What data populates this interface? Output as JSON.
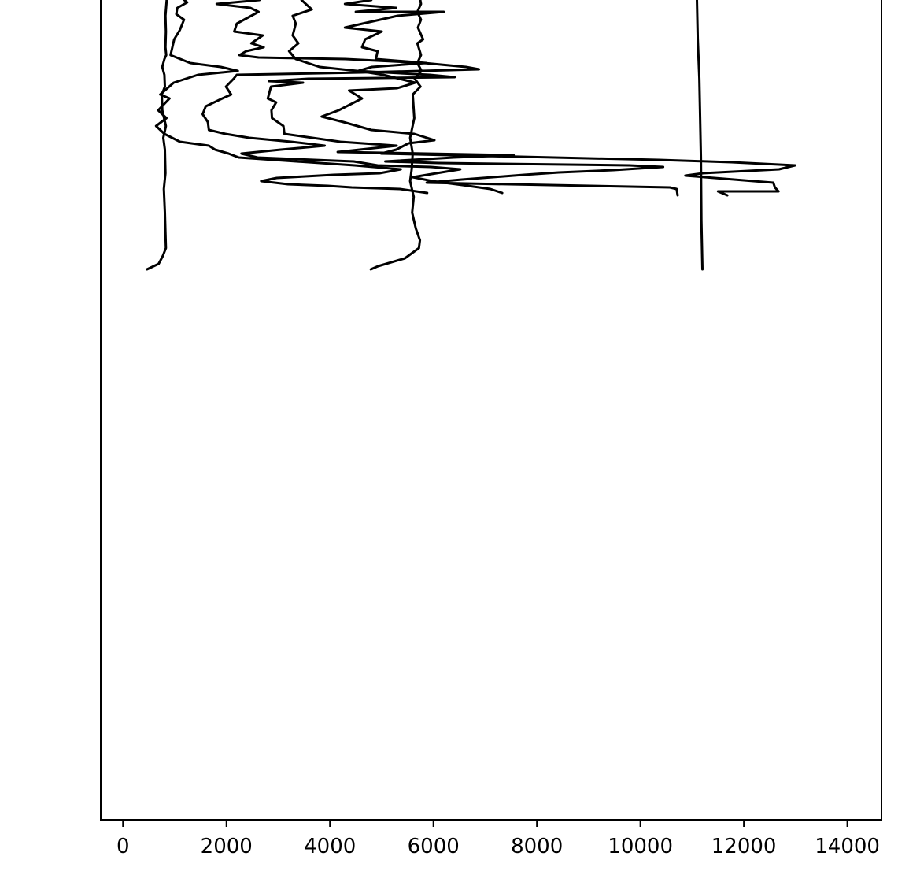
{
  "chart_data": {
    "type": "line",
    "title": "",
    "xlabel": "",
    "ylabel": "",
    "xlim": [
      -430,
      14660
    ],
    "ylim": [
      0,
      1000
    ],
    "x_ticks": [
      {
        "value": 0,
        "label": "0"
      },
      {
        "value": 2000,
        "label": "2000"
      },
      {
        "value": 4000,
        "label": "4000"
      },
      {
        "value": 6000,
        "label": "6000"
      },
      {
        "value": 8000,
        "label": "8000"
      },
      {
        "value": 10000,
        "label": "10000"
      },
      {
        "value": 12000,
        "label": "12000"
      },
      {
        "value": 14000,
        "label": "14000"
      }
    ],
    "grid": false,
    "legend": "none",
    "line_color": "#000000",
    "series": [
      {
        "points": [
          [
            835,
            -10
          ],
          [
            845,
            0
          ],
          [
            820,
            20
          ],
          [
            830,
            40
          ],
          [
            820,
            60
          ],
          [
            835,
            70
          ],
          [
            800,
            75
          ],
          [
            760,
            85
          ],
          [
            800,
            95
          ],
          [
            810,
            110
          ],
          [
            750,
            120
          ],
          [
            760,
            140
          ],
          [
            830,
            160
          ],
          [
            780,
            175
          ],
          [
            810,
            190
          ],
          [
            820,
            220
          ],
          [
            790,
            240
          ],
          [
            810,
            270
          ],
          [
            820,
            295
          ],
          [
            830,
            315
          ],
          [
            770,
            325
          ],
          [
            690,
            335
          ],
          [
            465,
            342
          ]
        ]
      },
      {
        "points": [
          [
            1000,
            -10
          ],
          [
            1240,
            3
          ],
          [
            1050,
            10
          ],
          [
            1030,
            18
          ],
          [
            1180,
            25
          ],
          [
            1100,
            38
          ],
          [
            990,
            50
          ],
          [
            920,
            70
          ],
          [
            1300,
            80
          ],
          [
            1890,
            85
          ],
          [
            2220,
            90
          ],
          [
            1450,
            95
          ],
          [
            980,
            105
          ],
          [
            720,
            120
          ],
          [
            900,
            125
          ],
          [
            680,
            140
          ],
          [
            840,
            150
          ],
          [
            640,
            160
          ],
          [
            800,
            170
          ],
          [
            1100,
            180
          ],
          [
            1660,
            185
          ],
          [
            1780,
            190
          ],
          [
            2040,
            195
          ],
          [
            2240,
            200
          ],
          [
            4480,
            210
          ],
          [
            5370,
            215
          ],
          [
            4960,
            220
          ],
          [
            4070,
            222
          ],
          [
            2970,
            226
          ],
          [
            2670,
            230
          ],
          [
            3190,
            234
          ],
          [
            3960,
            236
          ],
          [
            4420,
            238
          ],
          [
            5350,
            240
          ],
          [
            5880,
            245
          ]
        ]
      },
      {
        "points": [
          [
            2320,
            -10
          ],
          [
            2640,
            0
          ],
          [
            1810,
            5
          ],
          [
            2460,
            10
          ],
          [
            2620,
            15
          ],
          [
            2200,
            30
          ],
          [
            2150,
            40
          ],
          [
            2700,
            45
          ],
          [
            2480,
            55
          ],
          [
            2720,
            60
          ],
          [
            2380,
            65
          ],
          [
            2250,
            70
          ],
          [
            2620,
            73
          ],
          [
            4300,
            75
          ],
          [
            5820,
            80
          ],
          [
            6630,
            85
          ],
          [
            6880,
            88
          ],
          [
            4620,
            92
          ],
          [
            2200,
            95
          ],
          [
            2140,
            100
          ],
          [
            1990,
            110
          ],
          [
            2090,
            120
          ],
          [
            1920,
            125
          ],
          [
            1600,
            135
          ],
          [
            1540,
            145
          ],
          [
            1640,
            155
          ],
          [
            1660,
            165
          ],
          [
            1980,
            170
          ],
          [
            2440,
            175
          ],
          [
            3250,
            180
          ],
          [
            3900,
            185
          ],
          [
            3050,
            190
          ],
          [
            2290,
            195
          ],
          [
            2600,
            200
          ],
          [
            4460,
            205
          ],
          [
            4920,
            210
          ],
          [
            5950,
            212
          ],
          [
            6520,
            215
          ],
          [
            6060,
            220
          ],
          [
            5600,
            225
          ],
          [
            5980,
            230
          ],
          [
            6560,
            235
          ],
          [
            7100,
            240
          ],
          [
            7330,
            245
          ]
        ]
      },
      {
        "points": [
          [
            3380,
            -10
          ],
          [
            3450,
            0
          ],
          [
            3650,
            12
          ],
          [
            3280,
            20
          ],
          [
            3340,
            30
          ],
          [
            3280,
            45
          ],
          [
            3390,
            55
          ],
          [
            3210,
            65
          ],
          [
            3340,
            75
          ],
          [
            3800,
            85
          ],
          [
            4520,
            90
          ],
          [
            5930,
            95
          ],
          [
            6410,
            98
          ],
          [
            3580,
            100
          ],
          [
            2820,
            103
          ],
          [
            3480,
            105
          ],
          [
            2860,
            110
          ],
          [
            2800,
            125
          ],
          [
            2960,
            130
          ],
          [
            2870,
            140
          ],
          [
            2880,
            150
          ],
          [
            3100,
            160
          ],
          [
            3120,
            170
          ],
          [
            4200,
            180
          ],
          [
            5290,
            185
          ],
          [
            4150,
            193
          ],
          [
            7550,
            197
          ],
          [
            6390,
            200
          ],
          [
            5070,
            205
          ],
          [
            6100,
            207
          ],
          [
            9790,
            210
          ],
          [
            10440,
            212
          ],
          [
            9480,
            216
          ],
          [
            8420,
            219
          ],
          [
            7750,
            222
          ],
          [
            6550,
            228
          ],
          [
            5870,
            232
          ],
          [
            10570,
            238
          ],
          [
            10700,
            240
          ],
          [
            10720,
            248
          ]
        ]
      },
      {
        "points": [
          [
            4550,
            -10
          ],
          [
            4800,
            0
          ],
          [
            4290,
            5
          ],
          [
            5280,
            10
          ],
          [
            4500,
            15
          ],
          [
            6200,
            15
          ],
          [
            5310,
            20
          ],
          [
            4290,
            35
          ],
          [
            5000,
            40
          ],
          [
            4680,
            50
          ],
          [
            4620,
            60
          ],
          [
            4920,
            65
          ],
          [
            4890,
            75
          ],
          [
            5860,
            80
          ],
          [
            4810,
            85
          ],
          [
            4550,
            90
          ],
          [
            5030,
            95
          ],
          [
            5340,
            100
          ],
          [
            5650,
            105
          ],
          [
            5300,
            112
          ],
          [
            4370,
            115
          ],
          [
            4620,
            125
          ],
          [
            4170,
            140
          ],
          [
            3840,
            148
          ],
          [
            4260,
            155
          ],
          [
            4800,
            165
          ],
          [
            5630,
            170
          ],
          [
            6020,
            178
          ],
          [
            5520,
            182
          ],
          [
            5280,
            190
          ],
          [
            4990,
            195
          ],
          [
            10360,
            203
          ],
          [
            11760,
            206
          ],
          [
            12990,
            210
          ],
          [
            12680,
            215
          ],
          [
            11200,
            220
          ],
          [
            10870,
            223
          ],
          [
            12570,
            232
          ],
          [
            12600,
            238
          ],
          [
            12670,
            243
          ],
          [
            11500,
            243
          ],
          [
            11680,
            248
          ]
        ]
      },
      {
        "points": [
          [
            5720,
            -10
          ],
          [
            5760,
            5
          ],
          [
            5690,
            15
          ],
          [
            5760,
            25
          ],
          [
            5700,
            35
          ],
          [
            5800,
            50
          ],
          [
            5690,
            55
          ],
          [
            5760,
            70
          ],
          [
            5690,
            80
          ],
          [
            5770,
            90
          ],
          [
            5640,
            100
          ],
          [
            5750,
            110
          ],
          [
            5600,
            120
          ],
          [
            5630,
            150
          ],
          [
            5550,
            175
          ],
          [
            5600,
            195
          ],
          [
            5580,
            215
          ],
          [
            5550,
            230
          ],
          [
            5620,
            250
          ],
          [
            5590,
            270
          ],
          [
            5660,
            290
          ],
          [
            5740,
            305
          ],
          [
            5720,
            315
          ],
          [
            5450,
            328
          ],
          [
            4930,
            338
          ],
          [
            4790,
            342
          ]
        ]
      },
      {
        "points": [
          [
            11090,
            -10
          ],
          [
            11110,
            50
          ],
          [
            11140,
            100
          ],
          [
            11170,
            200
          ],
          [
            11180,
            280
          ],
          [
            11200,
            342
          ]
        ]
      }
    ]
  }
}
